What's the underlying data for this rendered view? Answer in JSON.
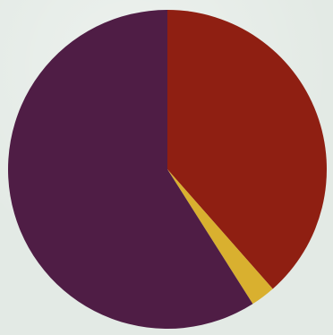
{
  "chart_data": {
    "type": "pie",
    "categories": [
      "",
      "",
      ""
    ],
    "values": [
      38.5,
      2.5,
      59.0
    ],
    "colors": [
      "#8f1f12",
      "#d9b02f",
      "#4f1d45"
    ],
    "title": "",
    "legend": "none",
    "start_angle_deg": 0,
    "direction": "clockwise"
  }
}
